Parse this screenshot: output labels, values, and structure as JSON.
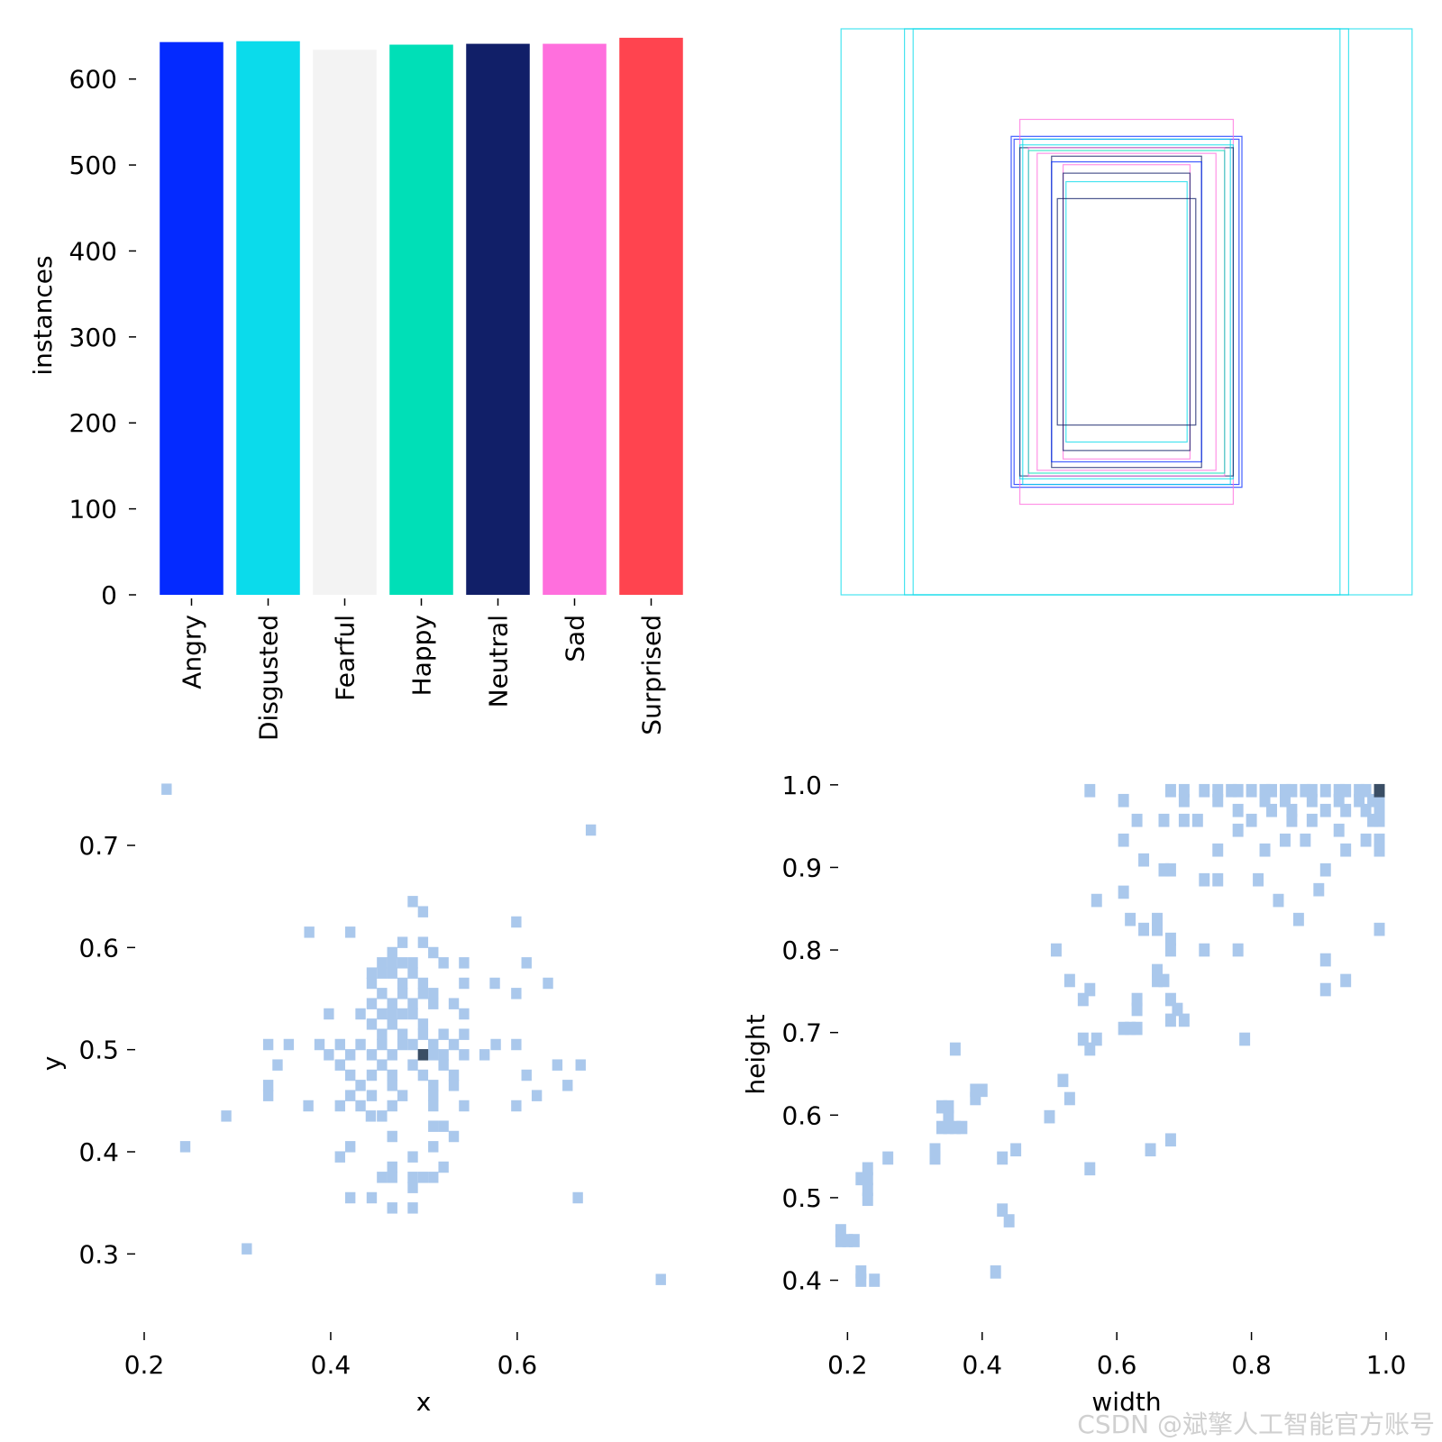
{
  "chart_data": [
    {
      "type": "bar",
      "categories": [
        "Angry",
        "Disgusted",
        "Fearful",
        "Happy",
        "Neutral",
        "Sad",
        "Surprised"
      ],
      "values": [
        643,
        644,
        634,
        640,
        641,
        641,
        648
      ],
      "colors": [
        "#042aff",
        "#0bdbeb",
        "#f3f3f3",
        "#00dfb7",
        "#111f68",
        "#ff6fdd",
        "#ff444f"
      ],
      "title": "",
      "xlabel": "",
      "ylabel": "instances",
      "ylim": [
        0,
        650
      ],
      "yticks": [
        "0",
        "100",
        "200",
        "300",
        "400",
        "500",
        "600"
      ]
    },
    {
      "type": "other",
      "description": "overlaid bounding-box rectangles centered at 0.5,0.5",
      "boxes": [
        {
          "w": 0.99,
          "h": 1.0,
          "color": "#0bdbeb"
        },
        {
          "w": 0.77,
          "h": 1.0,
          "color": "#0bdbeb"
        },
        {
          "w": 0.74,
          "h": 1.0,
          "color": "#0bdbeb"
        },
        {
          "w": 0.4,
          "h": 0.62,
          "color": "#042aff"
        },
        {
          "w": 0.39,
          "h": 0.61,
          "color": "#042aff"
        },
        {
          "w": 0.37,
          "h": 0.68,
          "color": "#ff6fdd"
        },
        {
          "w": 0.37,
          "h": 0.59,
          "color": "#0bdbeb"
        },
        {
          "w": 0.37,
          "h": 0.58,
          "color": "#111f68"
        },
        {
          "w": 0.36,
          "h": 0.61,
          "color": "#0bdbeb"
        },
        {
          "w": 0.34,
          "h": 0.58,
          "color": "#ff6fdd"
        },
        {
          "w": 0.34,
          "h": 0.57,
          "color": "#00dfb7"
        },
        {
          "w": 0.31,
          "h": 0.56,
          "color": "#ff6fdd"
        },
        {
          "w": 0.26,
          "h": 0.55,
          "color": "#111f68"
        },
        {
          "w": 0.26,
          "h": 0.53,
          "color": "#042aff"
        },
        {
          "w": 0.22,
          "h": 0.52,
          "color": "#ff6fdd"
        },
        {
          "w": 0.22,
          "h": 0.49,
          "color": "#111f68"
        },
        {
          "w": 0.21,
          "h": 0.46,
          "color": "#0bdbeb"
        },
        {
          "w": 0.24,
          "h": 0.4,
          "color": "#111f68"
        }
      ]
    },
    {
      "type": "heatmap",
      "xlabel": "x",
      "ylabel": "y",
      "xlim": [
        0.2,
        0.76
      ],
      "ylim": [
        0.25,
        0.76
      ],
      "xticks": [
        "0.2",
        "0.4",
        "0.6"
      ],
      "yticks": [
        "0.3",
        "0.4",
        "0.5",
        "0.6",
        "0.7"
      ],
      "bin": 0.011,
      "light_color": "#aac8ec",
      "dark_color": "#3a4e65",
      "points": [
        [
          0.224,
          0.755
        ],
        [
          0.679,
          0.715
        ],
        [
          0.488,
          0.645
        ],
        [
          0.499,
          0.635
        ],
        [
          0.377,
          0.615
        ],
        [
          0.421,
          0.615
        ],
        [
          0.599,
          0.625
        ],
        [
          0.477,
          0.605
        ],
        [
          0.499,
          0.605
        ],
        [
          0.466,
          0.595
        ],
        [
          0.51,
          0.595
        ],
        [
          0.455,
          0.585
        ],
        [
          0.466,
          0.585
        ],
        [
          0.477,
          0.585
        ],
        [
          0.488,
          0.585
        ],
        [
          0.521,
          0.585
        ],
        [
          0.543,
          0.585
        ],
        [
          0.61,
          0.585
        ],
        [
          0.444,
          0.575
        ],
        [
          0.455,
          0.575
        ],
        [
          0.466,
          0.575
        ],
        [
          0.488,
          0.575
        ],
        [
          0.444,
          0.565
        ],
        [
          0.477,
          0.565
        ],
        [
          0.499,
          0.565
        ],
        [
          0.543,
          0.565
        ],
        [
          0.576,
          0.565
        ],
        [
          0.633,
          0.565
        ],
        [
          0.455,
          0.555
        ],
        [
          0.477,
          0.555
        ],
        [
          0.499,
          0.555
        ],
        [
          0.51,
          0.555
        ],
        [
          0.599,
          0.555
        ],
        [
          0.444,
          0.545
        ],
        [
          0.466,
          0.545
        ],
        [
          0.488,
          0.545
        ],
        [
          0.51,
          0.545
        ],
        [
          0.532,
          0.545
        ],
        [
          0.398,
          0.535
        ],
        [
          0.432,
          0.535
        ],
        [
          0.455,
          0.535
        ],
        [
          0.466,
          0.535
        ],
        [
          0.477,
          0.535
        ],
        [
          0.488,
          0.535
        ],
        [
          0.543,
          0.535
        ],
        [
          0.444,
          0.525
        ],
        [
          0.466,
          0.525
        ],
        [
          0.499,
          0.525
        ],
        [
          0.455,
          0.515
        ],
        [
          0.477,
          0.515
        ],
        [
          0.499,
          0.515
        ],
        [
          0.521,
          0.515
        ],
        [
          0.543,
          0.515
        ],
        [
          0.333,
          0.505
        ],
        [
          0.355,
          0.505
        ],
        [
          0.388,
          0.505
        ],
        [
          0.41,
          0.505
        ],
        [
          0.432,
          0.505
        ],
        [
          0.455,
          0.505
        ],
        [
          0.477,
          0.505
        ],
        [
          0.488,
          0.505
        ],
        [
          0.51,
          0.505
        ],
        [
          0.532,
          0.505
        ],
        [
          0.577,
          0.505
        ],
        [
          0.599,
          0.505
        ],
        [
          0.398,
          0.495
        ],
        [
          0.421,
          0.495
        ],
        [
          0.444,
          0.495
        ],
        [
          0.466,
          0.495
        ],
        [
          0.499,
          0.495
        ],
        [
          0.51,
          0.495
        ],
        [
          0.521,
          0.495
        ],
        [
          0.543,
          0.495
        ],
        [
          0.565,
          0.495
        ],
        [
          0.343,
          0.485
        ],
        [
          0.41,
          0.485
        ],
        [
          0.455,
          0.485
        ],
        [
          0.488,
          0.485
        ],
        [
          0.521,
          0.485
        ],
        [
          0.643,
          0.485
        ],
        [
          0.668,
          0.485
        ],
        [
          0.421,
          0.475
        ],
        [
          0.444,
          0.475
        ],
        [
          0.466,
          0.475
        ],
        [
          0.499,
          0.475
        ],
        [
          0.532,
          0.475
        ],
        [
          0.61,
          0.475
        ],
        [
          0.333,
          0.465
        ],
        [
          0.432,
          0.465
        ],
        [
          0.466,
          0.465
        ],
        [
          0.51,
          0.465
        ],
        [
          0.532,
          0.465
        ],
        [
          0.654,
          0.465
        ],
        [
          0.333,
          0.455
        ],
        [
          0.421,
          0.455
        ],
        [
          0.444,
          0.455
        ],
        [
          0.477,
          0.455
        ],
        [
          0.51,
          0.455
        ],
        [
          0.621,
          0.455
        ],
        [
          0.376,
          0.445
        ],
        [
          0.41,
          0.445
        ],
        [
          0.432,
          0.445
        ],
        [
          0.466,
          0.445
        ],
        [
          0.51,
          0.445
        ],
        [
          0.543,
          0.445
        ],
        [
          0.599,
          0.445
        ],
        [
          0.288,
          0.435
        ],
        [
          0.443,
          0.435
        ],
        [
          0.455,
          0.435
        ],
        [
          0.51,
          0.425
        ],
        [
          0.521,
          0.425
        ],
        [
          0.466,
          0.415
        ],
        [
          0.532,
          0.415
        ],
        [
          0.244,
          0.405
        ],
        [
          0.421,
          0.405
        ],
        [
          0.51,
          0.405
        ],
        [
          0.41,
          0.395
        ],
        [
          0.488,
          0.395
        ],
        [
          0.466,
          0.385
        ],
        [
          0.521,
          0.385
        ],
        [
          0.488,
          0.375
        ],
        [
          0.499,
          0.375
        ],
        [
          0.51,
          0.375
        ],
        [
          0.455,
          0.375
        ],
        [
          0.466,
          0.375
        ],
        [
          0.488,
          0.365
        ],
        [
          0.421,
          0.355
        ],
        [
          0.444,
          0.355
        ],
        [
          0.665,
          0.355
        ],
        [
          0.466,
          0.345
        ],
        [
          0.488,
          0.345
        ],
        [
          0.31,
          0.305
        ],
        [
          0.754,
          0.275
        ]
      ],
      "dark_points": [
        [
          0.499,
          0.495
        ]
      ]
    },
    {
      "type": "heatmap",
      "xlabel": "width",
      "ylabel": "height",
      "xlim": [
        0.17,
        1.0
      ],
      "ylim": [
        0.37,
        1.0
      ],
      "xticks": [
        "0.2",
        "0.4",
        "0.6",
        "0.8",
        "1.0"
      ],
      "yticks": [
        "0.4",
        "0.5",
        "0.6",
        "0.7",
        "0.8",
        "0.9",
        "1.0"
      ],
      "bin": 0.016,
      "light_color": "#aac8ec",
      "dark_color": "#3a4e65",
      "points": [
        [
          0.56,
          0.993
        ],
        [
          0.68,
          0.993
        ],
        [
          0.7,
          0.993
        ],
        [
          0.73,
          0.993
        ],
        [
          0.75,
          0.993
        ],
        [
          0.77,
          0.993
        ],
        [
          0.78,
          0.993
        ],
        [
          0.8,
          0.993
        ],
        [
          0.82,
          0.993
        ],
        [
          0.83,
          0.993
        ],
        [
          0.85,
          0.993
        ],
        [
          0.86,
          0.993
        ],
        [
          0.88,
          0.993
        ],
        [
          0.89,
          0.993
        ],
        [
          0.91,
          0.993
        ],
        [
          0.93,
          0.993
        ],
        [
          0.94,
          0.993
        ],
        [
          0.96,
          0.993
        ],
        [
          0.97,
          0.993
        ],
        [
          0.61,
          0.981
        ],
        [
          0.7,
          0.981
        ],
        [
          0.75,
          0.981
        ],
        [
          0.82,
          0.981
        ],
        [
          0.85,
          0.981
        ],
        [
          0.89,
          0.981
        ],
        [
          0.93,
          0.981
        ],
        [
          0.96,
          0.981
        ],
        [
          0.98,
          0.981
        ],
        [
          0.99,
          0.981
        ],
        [
          0.78,
          0.969
        ],
        [
          0.83,
          0.969
        ],
        [
          0.86,
          0.969
        ],
        [
          0.91,
          0.969
        ],
        [
          0.94,
          0.969
        ],
        [
          0.97,
          0.969
        ],
        [
          0.99,
          0.969
        ],
        [
          0.63,
          0.957
        ],
        [
          0.67,
          0.957
        ],
        [
          0.7,
          0.957
        ],
        [
          0.72,
          0.957
        ],
        [
          0.8,
          0.957
        ],
        [
          0.86,
          0.957
        ],
        [
          0.89,
          0.957
        ],
        [
          0.98,
          0.957
        ],
        [
          0.99,
          0.957
        ],
        [
          0.78,
          0.945
        ],
        [
          0.93,
          0.945
        ],
        [
          0.61,
          0.933
        ],
        [
          0.85,
          0.933
        ],
        [
          0.88,
          0.933
        ],
        [
          0.97,
          0.933
        ],
        [
          0.99,
          0.933
        ],
        [
          0.75,
          0.921
        ],
        [
          0.82,
          0.921
        ],
        [
          0.94,
          0.921
        ],
        [
          0.99,
          0.921
        ],
        [
          0.64,
          0.909
        ],
        [
          0.67,
          0.897
        ],
        [
          0.68,
          0.897
        ],
        [
          0.91,
          0.897
        ],
        [
          0.73,
          0.885
        ],
        [
          0.75,
          0.885
        ],
        [
          0.81,
          0.885
        ],
        [
          0.9,
          0.873
        ],
        [
          0.61,
          0.87
        ],
        [
          0.57,
          0.86
        ],
        [
          0.84,
          0.86
        ],
        [
          0.62,
          0.837
        ],
        [
          0.64,
          0.825
        ],
        [
          0.66,
          0.837
        ],
        [
          0.66,
          0.825
        ],
        [
          0.87,
          0.837
        ],
        [
          0.99,
          0.825
        ],
        [
          0.68,
          0.813
        ],
        [
          0.68,
          0.8
        ],
        [
          0.51,
          0.8
        ],
        [
          0.73,
          0.8
        ],
        [
          0.78,
          0.8
        ],
        [
          0.91,
          0.788
        ],
        [
          0.66,
          0.775
        ],
        [
          0.66,
          0.763
        ],
        [
          0.67,
          0.763
        ],
        [
          0.53,
          0.763
        ],
        [
          0.94,
          0.763
        ],
        [
          0.56,
          0.752
        ],
        [
          0.55,
          0.74
        ],
        [
          0.63,
          0.74
        ],
        [
          0.68,
          0.74
        ],
        [
          0.91,
          0.752
        ],
        [
          0.63,
          0.728
        ],
        [
          0.69,
          0.728
        ],
        [
          0.68,
          0.715
        ],
        [
          0.7,
          0.715
        ],
        [
          0.63,
          0.705
        ],
        [
          0.62,
          0.705
        ],
        [
          0.61,
          0.705
        ],
        [
          0.55,
          0.692
        ],
        [
          0.56,
          0.68
        ],
        [
          0.57,
          0.692
        ],
        [
          0.79,
          0.692
        ],
        [
          0.36,
          0.68
        ],
        [
          0.52,
          0.642
        ],
        [
          0.39,
          0.63
        ],
        [
          0.4,
          0.63
        ],
        [
          0.39,
          0.62
        ],
        [
          0.53,
          0.62
        ],
        [
          0.34,
          0.61
        ],
        [
          0.35,
          0.61
        ],
        [
          0.35,
          0.598
        ],
        [
          0.5,
          0.598
        ],
        [
          0.34,
          0.585
        ],
        [
          0.35,
          0.585
        ],
        [
          0.36,
          0.585
        ],
        [
          0.37,
          0.585
        ],
        [
          0.33,
          0.558
        ],
        [
          0.33,
          0.548
        ],
        [
          0.45,
          0.558
        ],
        [
          0.26,
          0.548
        ],
        [
          0.43,
          0.548
        ],
        [
          0.65,
          0.558
        ],
        [
          0.68,
          0.57
        ],
        [
          0.23,
          0.535
        ],
        [
          0.22,
          0.523
        ],
        [
          0.23,
          0.523
        ],
        [
          0.23,
          0.51
        ],
        [
          0.23,
          0.498
        ],
        [
          0.56,
          0.535
        ],
        [
          0.43,
          0.485
        ],
        [
          0.44,
          0.472
        ],
        [
          0.19,
          0.46
        ],
        [
          0.19,
          0.448
        ],
        [
          0.2,
          0.448
        ],
        [
          0.21,
          0.448
        ],
        [
          0.22,
          0.41
        ],
        [
          0.22,
          0.4
        ],
        [
          0.24,
          0.4
        ],
        [
          0.42,
          0.41
        ]
      ],
      "dark_points": [
        [
          0.99,
          0.993
        ]
      ]
    }
  ],
  "watermark": "CSDN @斌擎人工智能官方账号"
}
